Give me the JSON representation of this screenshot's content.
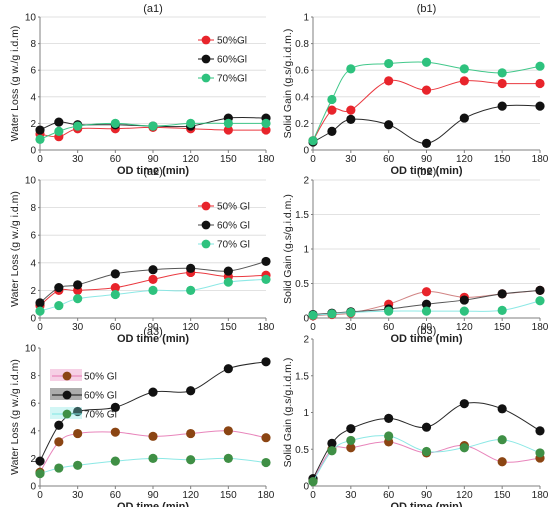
{
  "colors": {
    "red": "#e8242b",
    "black": "#111111",
    "green": "#2ec27e",
    "brown": "#8b4513",
    "pink": "#e678b4",
    "cyan": "#7fe6e2",
    "dkgreen": "#3f8f45",
    "grid": "#d9d9d9",
    "axis": "#7f7f7f"
  },
  "chart_data": [
    {
      "id": "a1",
      "type": "line",
      "title": "(a1)",
      "xlabel": "OD time (min)",
      "ylabel": "Water Loss (g w./g i.d.m)",
      "x": [
        0,
        15,
        30,
        60,
        90,
        120,
        150,
        180
      ],
      "xticks": [
        0,
        30,
        60,
        90,
        120,
        150,
        180
      ],
      "ylim": [
        0,
        10
      ],
      "yticks": [
        0,
        2,
        4,
        6,
        8,
        10
      ],
      "grid": true,
      "legend": "right",
      "series": [
        {
          "name": "50%Gl",
          "color": "#e8242b",
          "line": "#e8242b",
          "values": [
            1.2,
            1.0,
            1.6,
            1.6,
            1.7,
            1.6,
            1.5,
            1.5
          ]
        },
        {
          "name": "60%Gl",
          "color": "#111111",
          "line": "#111111",
          "values": [
            1.5,
            2.1,
            1.9,
            1.9,
            1.8,
            1.8,
            2.4,
            2.4
          ]
        },
        {
          "name": "70%Gl",
          "color": "#2ec27e",
          "line": "#2ec27e",
          "values": [
            0.8,
            1.4,
            1.8,
            2.0,
            1.8,
            2.0,
            2.0,
            2.0
          ]
        }
      ]
    },
    {
      "id": "b1",
      "type": "line",
      "title": "(b1)",
      "xlabel": "OD time (min)",
      "ylabel": "Solid Gain (g.s/g.i.d.m.)",
      "x": [
        0,
        15,
        30,
        60,
        90,
        120,
        150,
        180
      ],
      "xticks": [
        0,
        30,
        60,
        90,
        120,
        150,
        180
      ],
      "ylim": [
        0,
        1
      ],
      "yticks": [
        0,
        0.2,
        0.4,
        0.6,
        0.8,
        1
      ],
      "grid": true,
      "legend": "none",
      "series": [
        {
          "name": "50%Gl",
          "color": "#e8242b",
          "line": "#e8242b",
          "values": [
            0.07,
            0.3,
            0.3,
            0.52,
            0.45,
            0.52,
            0.5,
            0.5
          ]
        },
        {
          "name": "60%Gl",
          "color": "#111111",
          "line": "#111111",
          "values": [
            0.06,
            0.14,
            0.23,
            0.19,
            0.05,
            0.24,
            0.33,
            0.33
          ]
        },
        {
          "name": "70%Gl",
          "color": "#2ec27e",
          "line": "#2ec27e",
          "values": [
            0.07,
            0.38,
            0.61,
            0.65,
            0.66,
            0.61,
            0.58,
            0.63
          ]
        }
      ]
    },
    {
      "id": "a2",
      "type": "line",
      "title": "(a2)",
      "xlabel": "OD time (min)",
      "ylabel": "Water Loss (g w./g i.d.m)",
      "x": [
        0,
        15,
        30,
        60,
        90,
        120,
        150,
        180
      ],
      "xticks": [
        0,
        30,
        60,
        90,
        120,
        150,
        180
      ],
      "ylim": [
        0,
        10
      ],
      "yticks": [
        0,
        2,
        4,
        6,
        8,
        10
      ],
      "grid": true,
      "legend": "right",
      "series": [
        {
          "name": "50% Gl",
          "color": "#e8242b",
          "line": "#e8242b",
          "values": [
            0.9,
            2.0,
            2.0,
            2.2,
            2.8,
            3.3,
            3.0,
            3.1
          ]
        },
        {
          "name": "60% Gl",
          "color": "#111111",
          "line": "#444444",
          "values": [
            1.1,
            2.2,
            2.4,
            3.2,
            3.5,
            3.6,
            3.4,
            4.1
          ]
        },
        {
          "name": "70% Gl",
          "color": "#2ec27e",
          "line": "#7fe6e2",
          "values": [
            0.5,
            0.9,
            1.4,
            1.7,
            2.0,
            2.0,
            2.6,
            2.8
          ]
        }
      ]
    },
    {
      "id": "b2",
      "type": "line",
      "title": "(b2)",
      "xlabel": "OD time (min)",
      "ylabel": "Solid Gain (g.s/g.i.d.m.)",
      "x": [
        0,
        15,
        30,
        60,
        90,
        120,
        150,
        180
      ],
      "xticks": [
        0,
        30,
        60,
        90,
        120,
        150,
        180
      ],
      "ylim": [
        0,
        2
      ],
      "yticks": [
        0,
        0.5,
        1,
        1.5,
        2
      ],
      "grid": true,
      "legend": "none",
      "series": [
        {
          "name": "50% Gl",
          "color": "#e8242b",
          "line": "#c77",
          "values": [
            0.03,
            0.05,
            0.07,
            0.2,
            0.38,
            0.3,
            0.35,
            0.4
          ]
        },
        {
          "name": "60% Gl",
          "color": "#111111",
          "line": "#444444",
          "values": [
            0.05,
            0.07,
            0.09,
            0.13,
            0.2,
            0.26,
            0.35,
            0.4
          ]
        },
        {
          "name": "70% Gl",
          "color": "#2ec27e",
          "line": "#7fe6e2",
          "values": [
            0.04,
            0.06,
            0.08,
            0.1,
            0.1,
            0.1,
            0.11,
            0.25
          ]
        }
      ]
    },
    {
      "id": "a3",
      "type": "line",
      "title": "(a3)",
      "xlabel": "OD time (min)",
      "ylabel": "Water Loss (g w./g i.d.m)",
      "x": [
        0,
        15,
        30,
        60,
        90,
        120,
        150,
        180
      ],
      "xticks": [
        0,
        30,
        60,
        90,
        120,
        150,
        180
      ],
      "ylim": [
        0,
        10
      ],
      "yticks": [
        0,
        2,
        4,
        6,
        8,
        10
      ],
      "grid": false,
      "legend": "top-left",
      "series": [
        {
          "name": "50% Gl",
          "color": "#8b4513",
          "line": "#e678b4",
          "values": [
            1.0,
            3.2,
            3.8,
            3.9,
            3.6,
            3.8,
            4.0,
            3.5
          ]
        },
        {
          "name": "60% Gl",
          "color": "#111111",
          "line": "#111111",
          "values": [
            1.8,
            4.4,
            5.4,
            5.7,
            6.8,
            6.9,
            8.5,
            9.0
          ]
        },
        {
          "name": "70% Gl",
          "color": "#3f8f45",
          "line": "#7fe6e2",
          "values": [
            0.9,
            1.3,
            1.5,
            1.8,
            2.0,
            1.9,
            2.0,
            1.7
          ]
        }
      ]
    },
    {
      "id": "b3",
      "type": "line",
      "title": "(b3)",
      "xlabel": "OD time (min)",
      "ylabel": "Solid Gain (g.s/g.i.d.m.)",
      "x": [
        0,
        15,
        30,
        60,
        90,
        120,
        150,
        180
      ],
      "xticks": [
        0,
        30,
        60,
        90,
        120,
        150,
        180
      ],
      "ylim": [
        0,
        2
      ],
      "yticks": [
        0,
        0.5,
        1,
        1.5,
        2
      ],
      "grid": false,
      "legend": "none",
      "series": [
        {
          "name": "50% Gl",
          "color": "#8b4513",
          "line": "#e678b4",
          "values": [
            0.08,
            0.5,
            0.52,
            0.6,
            0.45,
            0.55,
            0.33,
            0.38
          ]
        },
        {
          "name": "60% Gl",
          "color": "#111111",
          "line": "#111111",
          "values": [
            0.1,
            0.58,
            0.78,
            0.92,
            0.8,
            1.12,
            1.05,
            0.75
          ]
        },
        {
          "name": "70% Gl",
          "color": "#3f8f45",
          "line": "#7fe6e2",
          "values": [
            0.06,
            0.48,
            0.62,
            0.68,
            0.47,
            0.52,
            0.63,
            0.45
          ]
        }
      ]
    }
  ]
}
